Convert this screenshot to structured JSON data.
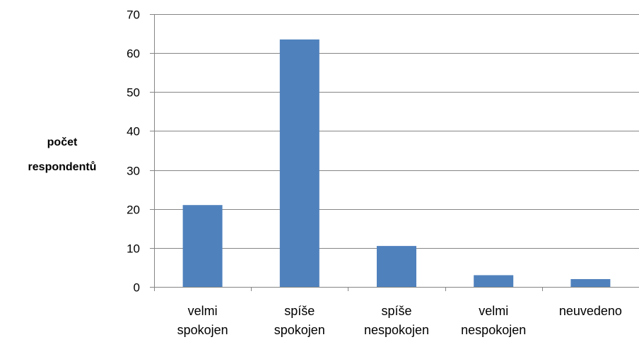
{
  "chart_data": {
    "type": "bar",
    "categories": [
      [
        "velmi",
        "spokojen"
      ],
      [
        "spíše",
        "spokojen"
      ],
      [
        "spíše",
        "nespokojen"
      ],
      [
        "velmi",
        "nespokojen"
      ],
      [
        "neuvedeno"
      ]
    ],
    "values": [
      21,
      63.5,
      10.5,
      3,
      2
    ],
    "ylabel": [
      "počet",
      "respondentů"
    ],
    "ylim": [
      0,
      70
    ],
    "yticks": [
      0,
      10,
      20,
      30,
      40,
      50,
      60,
      70
    ],
    "grid": true,
    "bar_color": "#4F81BD"
  }
}
